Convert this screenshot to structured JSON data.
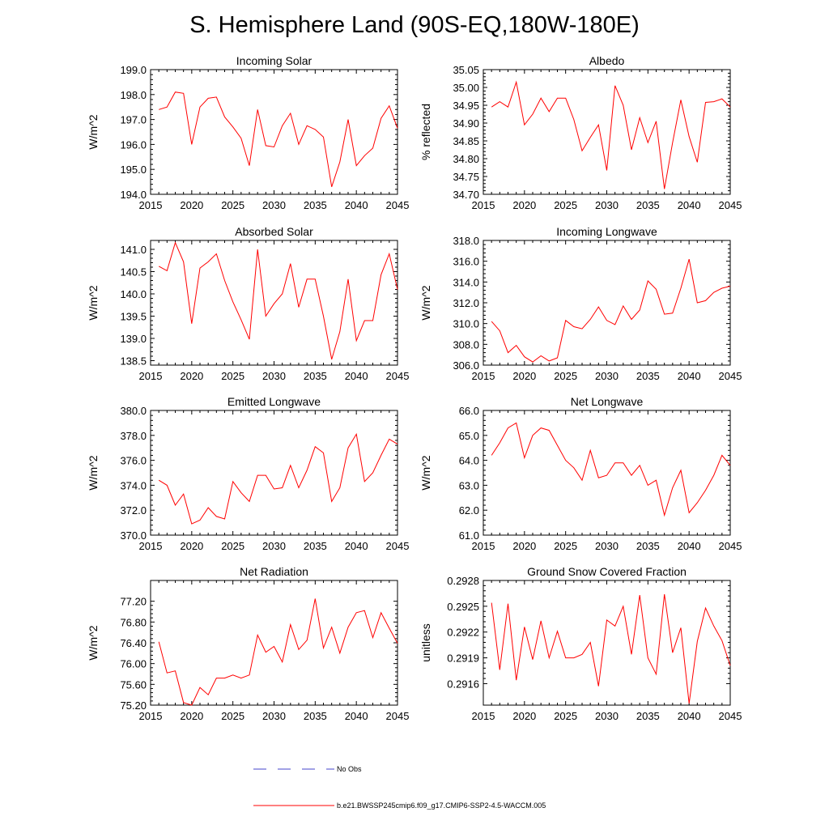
{
  "title": "S. Hemisphere Land (90S-EQ,180W-180E)",
  "colors": {
    "model": "#ff0000",
    "obs": "#4444cc",
    "axis": "#000000",
    "background": "#ffffff"
  },
  "legend": {
    "obs_label": "No Obs",
    "model_label": "b.e21.BWSSP245cmip6.f09_g17.CMIP6-SSP2-4.5-WACCM.005"
  },
  "chart_data": [
    {
      "type": "line",
      "title": "Incoming Solar",
      "ylabel": "W/m^2",
      "xlim": [
        2015,
        2045
      ],
      "ylim": [
        194.0,
        199.0
      ],
      "xticks": [
        2015,
        2020,
        2025,
        2030,
        2035,
        2040,
        2045
      ],
      "yticks": [
        194.0,
        195.0,
        196.0,
        197.0,
        198.0,
        199.0
      ],
      "ytick_labels": [
        "194.0",
        "195.0",
        "196.0",
        "197.0",
        "198.0",
        "199.0"
      ],
      "x": [
        2016,
        2017,
        2018,
        2019,
        2020,
        2021,
        2022,
        2023,
        2024,
        2025,
        2026,
        2027,
        2028,
        2029,
        2030,
        2031,
        2032,
        2033,
        2034,
        2035,
        2036,
        2037,
        2038,
        2039,
        2040,
        2041,
        2042,
        2043,
        2044,
        2045
      ],
      "values": [
        197.4,
        197.5,
        198.1,
        198.05,
        196.0,
        197.5,
        197.85,
        197.9,
        197.1,
        196.7,
        196.25,
        195.15,
        197.4,
        195.95,
        195.9,
        196.75,
        197.25,
        196.0,
        196.75,
        196.6,
        196.3,
        194.3,
        195.3,
        197.0,
        195.15,
        195.55,
        195.85,
        197.05,
        197.55,
        196.65
      ]
    },
    {
      "type": "line",
      "title": "Albedo",
      "ylabel": "% reflected",
      "xlim": [
        2015,
        2045
      ],
      "ylim": [
        34.7,
        35.05
      ],
      "xticks": [
        2015,
        2020,
        2025,
        2030,
        2035,
        2040,
        2045
      ],
      "yticks": [
        34.7,
        34.75,
        34.8,
        34.85,
        34.9,
        34.95,
        35.0,
        35.05
      ],
      "ytick_labels": [
        "34.70",
        "34.75",
        "34.80",
        "34.85",
        "34.90",
        "34.95",
        "35.00",
        "35.05"
      ],
      "x": [
        2016,
        2017,
        2018,
        2019,
        2020,
        2021,
        2022,
        2023,
        2024,
        2025,
        2026,
        2027,
        2028,
        2029,
        2030,
        2031,
        2032,
        2033,
        2034,
        2035,
        2036,
        2037,
        2038,
        2039,
        2040,
        2041,
        2042,
        2043,
        2044,
        2045
      ],
      "values": [
        34.945,
        34.96,
        34.945,
        35.015,
        34.895,
        34.925,
        34.97,
        34.932,
        34.97,
        34.97,
        34.91,
        34.822,
        34.86,
        34.895,
        34.767,
        35.005,
        34.95,
        34.825,
        34.915,
        34.845,
        34.905,
        34.715,
        34.845,
        34.965,
        34.862,
        34.79,
        34.958,
        34.96,
        34.968,
        34.945
      ]
    },
    {
      "type": "line",
      "title": "Absorbed Solar",
      "ylabel": "W/m^2",
      "xlim": [
        2015,
        2045
      ],
      "ylim": [
        138.4,
        141.2
      ],
      "xticks": [
        2015,
        2020,
        2025,
        2030,
        2035,
        2040,
        2045
      ],
      "yticks": [
        138.5,
        139.0,
        139.5,
        140.0,
        140.5,
        141.0
      ],
      "ytick_labels": [
        "138.5",
        "139.0",
        "139.5",
        "140.0",
        "140.5",
        "141.0"
      ],
      "x": [
        2016,
        2017,
        2018,
        2019,
        2020,
        2021,
        2022,
        2023,
        2024,
        2025,
        2026,
        2027,
        2028,
        2029,
        2030,
        2031,
        2032,
        2033,
        2034,
        2035,
        2036,
        2037,
        2038,
        2039,
        2040,
        2041,
        2042,
        2043,
        2044,
        2045
      ],
      "values": [
        140.62,
        140.52,
        141.15,
        140.72,
        139.33,
        140.58,
        140.72,
        140.9,
        140.3,
        139.82,
        139.42,
        138.98,
        141.0,
        139.5,
        139.78,
        140.0,
        140.68,
        139.7,
        140.33,
        140.33,
        139.5,
        138.53,
        139.15,
        140.33,
        138.95,
        139.4,
        139.4,
        140.43,
        140.9,
        140.1
      ]
    },
    {
      "type": "line",
      "title": "Incoming Longwave",
      "ylabel": "W/m^2",
      "xlim": [
        2015,
        2045
      ],
      "ylim": [
        306.0,
        318.0
      ],
      "xticks": [
        2015,
        2020,
        2025,
        2030,
        2035,
        2040,
        2045
      ],
      "yticks": [
        306.0,
        308.0,
        310.0,
        312.0,
        314.0,
        316.0,
        318.0
      ],
      "ytick_labels": [
        "306.0",
        "308.0",
        "310.0",
        "312.0",
        "314.0",
        "316.0",
        "318.0"
      ],
      "x": [
        2016,
        2017,
        2018,
        2019,
        2020,
        2021,
        2022,
        2023,
        2024,
        2025,
        2026,
        2027,
        2028,
        2029,
        2030,
        2031,
        2032,
        2033,
        2034,
        2035,
        2036,
        2037,
        2038,
        2039,
        2040,
        2041,
        2042,
        2043,
        2044,
        2045
      ],
      "values": [
        310.2,
        309.3,
        307.2,
        307.9,
        306.8,
        306.3,
        306.9,
        306.4,
        306.7,
        310.3,
        309.7,
        309.5,
        310.4,
        311.6,
        310.3,
        309.9,
        311.7,
        310.4,
        311.3,
        314.1,
        313.3,
        310.9,
        311.0,
        313.4,
        316.2,
        312.0,
        312.2,
        313.0,
        313.4,
        313.6
      ]
    },
    {
      "type": "line",
      "title": "Emitted Longwave",
      "ylabel": "W/m^2",
      "xlim": [
        2015,
        2045
      ],
      "ylim": [
        370.0,
        380.0
      ],
      "xticks": [
        2015,
        2020,
        2025,
        2030,
        2035,
        2040,
        2045
      ],
      "yticks": [
        370.0,
        372.0,
        374.0,
        376.0,
        378.0,
        380.0
      ],
      "ytick_labels": [
        "370.0",
        "372.0",
        "374.0",
        "376.0",
        "378.0",
        "380.0"
      ],
      "x": [
        2016,
        2017,
        2018,
        2019,
        2020,
        2021,
        2022,
        2023,
        2024,
        2025,
        2026,
        2027,
        2028,
        2029,
        2030,
        2031,
        2032,
        2033,
        2034,
        2035,
        2036,
        2037,
        2038,
        2039,
        2040,
        2041,
        2042,
        2043,
        2044,
        2045
      ],
      "values": [
        374.4,
        374.0,
        372.4,
        373.3,
        370.9,
        371.2,
        372.2,
        371.5,
        371.3,
        374.3,
        373.4,
        372.7,
        374.8,
        374.8,
        373.7,
        373.8,
        375.6,
        373.8,
        375.2,
        377.1,
        376.6,
        372.7,
        373.8,
        377.0,
        378.1,
        374.3,
        375.0,
        376.4,
        377.7,
        377.3
      ]
    },
    {
      "type": "line",
      "title": "Net Longwave",
      "ylabel": "W/m^2",
      "xlim": [
        2015,
        2045
      ],
      "ylim": [
        61.0,
        66.0
      ],
      "xticks": [
        2015,
        2020,
        2025,
        2030,
        2035,
        2040,
        2045
      ],
      "yticks": [
        61.0,
        62.0,
        63.0,
        64.0,
        65.0,
        66.0
      ],
      "ytick_labels": [
        "61.0",
        "62.0",
        "63.0",
        "64.0",
        "65.0",
        "66.0"
      ],
      "x": [
        2016,
        2017,
        2018,
        2019,
        2020,
        2021,
        2022,
        2023,
        2024,
        2025,
        2026,
        2027,
        2028,
        2029,
        2030,
        2031,
        2032,
        2033,
        2034,
        2035,
        2036,
        2037,
        2038,
        2039,
        2040,
        2041,
        2042,
        2043,
        2044,
        2045
      ],
      "values": [
        64.2,
        64.7,
        65.3,
        65.5,
        64.1,
        65.0,
        65.3,
        65.2,
        64.6,
        64.0,
        63.7,
        63.2,
        64.4,
        63.3,
        63.4,
        63.9,
        63.9,
        63.4,
        63.8,
        63.0,
        63.2,
        61.8,
        62.9,
        63.6,
        61.9,
        62.3,
        62.8,
        63.4,
        64.2,
        63.8
      ]
    },
    {
      "type": "line",
      "title": "Net Radiation",
      "ylabel": "W/m^2",
      "xlim": [
        2015,
        2045
      ],
      "ylim": [
        75.2,
        77.6
      ],
      "xticks": [
        2015,
        2020,
        2025,
        2030,
        2035,
        2040,
        2045
      ],
      "yticks": [
        75.2,
        75.6,
        76.0,
        76.4,
        76.8,
        77.2
      ],
      "ytick_labels": [
        "75.20",
        "75.60",
        "76.00",
        "76.40",
        "76.80",
        "77.20"
      ],
      "x": [
        2016,
        2017,
        2018,
        2019,
        2020,
        2021,
        2022,
        2023,
        2024,
        2025,
        2026,
        2027,
        2028,
        2029,
        2030,
        2031,
        2032,
        2033,
        2034,
        2035,
        2036,
        2037,
        2038,
        2039,
        2040,
        2041,
        2042,
        2043,
        2044,
        2045
      ],
      "values": [
        76.42,
        75.82,
        75.86,
        75.25,
        75.2,
        75.54,
        75.4,
        75.72,
        75.72,
        75.78,
        75.72,
        75.78,
        76.55,
        76.22,
        76.33,
        76.03,
        76.75,
        76.27,
        76.45,
        77.25,
        76.3,
        76.7,
        76.2,
        76.7,
        76.98,
        77.02,
        76.5,
        76.98,
        76.68,
        76.39
      ]
    },
    {
      "type": "line",
      "title": "Ground Snow Covered Fraction",
      "ylabel": "unitless",
      "xlim": [
        2015,
        2045
      ],
      "ylim": [
        0.29135,
        0.2928
      ],
      "xticks": [
        2015,
        2020,
        2025,
        2030,
        2035,
        2040,
        2045
      ],
      "yticks": [
        0.2916,
        0.2919,
        0.2922,
        0.2925,
        0.2928
      ],
      "ytick_labels": [
        "0.2916",
        "0.2919",
        "0.2922",
        "0.2925",
        "0.2928"
      ],
      "x": [
        2016,
        2017,
        2018,
        2019,
        2020,
        2021,
        2022,
        2023,
        2024,
        2025,
        2026,
        2027,
        2028,
        2029,
        2030,
        2031,
        2032,
        2033,
        2034,
        2035,
        2036,
        2037,
        2038,
        2039,
        2040,
        2041,
        2042,
        2043,
        2044,
        2045
      ],
      "values": [
        0.29254,
        0.29176,
        0.29253,
        0.29164,
        0.29226,
        0.29188,
        0.29233,
        0.2919,
        0.29221,
        0.2919,
        0.2919,
        0.29194,
        0.29208,
        0.29157,
        0.29234,
        0.29227,
        0.2925,
        0.29194,
        0.29263,
        0.2919,
        0.29171,
        0.29264,
        0.29196,
        0.29225,
        0.29137,
        0.29209,
        0.29248,
        0.29227,
        0.2921,
        0.29181
      ]
    }
  ]
}
